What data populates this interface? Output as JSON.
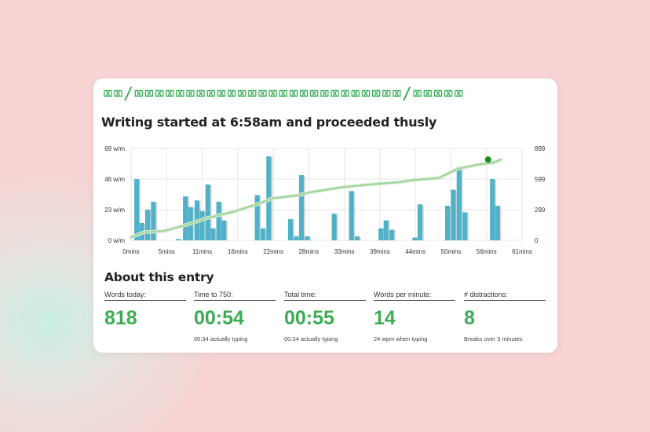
{
  "header": {
    "glyphs": "⌧⌧/⌧⌧⌧⌧⌧⌧⌧⌧⌧⌧⌧⌧⌧⌧⌧⌧⌧⌧⌧⌧⌧⌧⌧⌧⌧⌧/⌧⌧⌧⌧⌧"
  },
  "subtitle": "Writing started at 6:58am and proceeded thusly",
  "chart_data": {
    "type": "bar",
    "left_axis": {
      "ticks": [
        "69 w/m",
        "46 w/m",
        "23 w/m",
        "0 w/m"
      ],
      "range": [
        0,
        69
      ]
    },
    "right_axis": {
      "ticks": [
        "899",
        "599",
        "299",
        "0"
      ],
      "range": [
        0,
        899
      ]
    },
    "x_ticks": [
      "0mins",
      "5mins",
      "11mins",
      "16mins",
      "22mins",
      "28mins",
      "33mins",
      "39mins",
      "44mins",
      "50mins",
      "56mins",
      "61mins"
    ],
    "x_range": [
      0,
      61
    ],
    "grid": true,
    "series": [
      {
        "type": "bar",
        "points": [
          [
            0.5,
            46
          ],
          [
            1.3,
            13
          ],
          [
            2.2,
            23
          ],
          [
            3.1,
            29
          ],
          [
            7.0,
            1
          ],
          [
            8.1,
            33
          ],
          [
            8.9,
            25
          ],
          [
            9.9,
            30
          ],
          [
            10.7,
            22
          ],
          [
            11.6,
            42
          ],
          [
            12.4,
            9
          ],
          [
            13.3,
            29
          ],
          [
            14.1,
            15
          ],
          [
            19.3,
            34
          ],
          [
            20.2,
            9
          ],
          [
            21.1,
            63
          ],
          [
            24.5,
            16
          ],
          [
            25.4,
            3
          ],
          [
            26.2,
            49
          ],
          [
            27.1,
            3
          ],
          [
            31.3,
            20
          ],
          [
            34.0,
            37
          ],
          [
            34.9,
            3
          ],
          [
            38.6,
            9
          ],
          [
            39.4,
            15
          ],
          [
            40.3,
            8
          ],
          [
            43.9,
            2
          ],
          [
            44.7,
            27
          ],
          [
            49.0,
            26
          ],
          [
            49.9,
            38
          ],
          [
            50.8,
            55
          ],
          [
            51.7,
            21
          ],
          [
            56.0,
            46
          ],
          [
            56.8,
            26
          ]
        ]
      },
      {
        "type": "line",
        "points": [
          [
            0,
            30
          ],
          [
            2,
            80
          ],
          [
            5,
            90
          ],
          [
            8,
            140
          ],
          [
            12,
            220
          ],
          [
            16,
            280
          ],
          [
            20,
            360
          ],
          [
            22,
            410
          ],
          [
            26,
            440
          ],
          [
            28,
            470
          ],
          [
            33,
            520
          ],
          [
            38,
            550
          ],
          [
            42,
            570
          ],
          [
            44,
            590
          ],
          [
            48,
            610
          ],
          [
            51,
            700
          ],
          [
            54,
            740
          ],
          [
            56.5,
            760
          ],
          [
            57.7,
            790
          ]
        ],
        "end_marker": [
          55.7,
          790
        ]
      }
    ]
  },
  "about": {
    "title": "About this entry",
    "stats": [
      {
        "label": "Words today:",
        "value": "818",
        "note": ""
      },
      {
        "label": "Time to 750:",
        "value": "00:54",
        "note": "00:34 actually typing"
      },
      {
        "label": "Total time:",
        "value": "00:55",
        "note": "00:34 actually typing"
      },
      {
        "label": "Words per minute:",
        "value": "14",
        "note": "24 wpm when typing"
      },
      {
        "label": "# distractions:",
        "value": "8",
        "note": "Breaks over 3 minutes"
      }
    ]
  },
  "colors": {
    "accent_green": "#3cac52",
    "bar": "#4fb2c8",
    "line": "#9fd39a",
    "marker": "#1a8a1a"
  }
}
